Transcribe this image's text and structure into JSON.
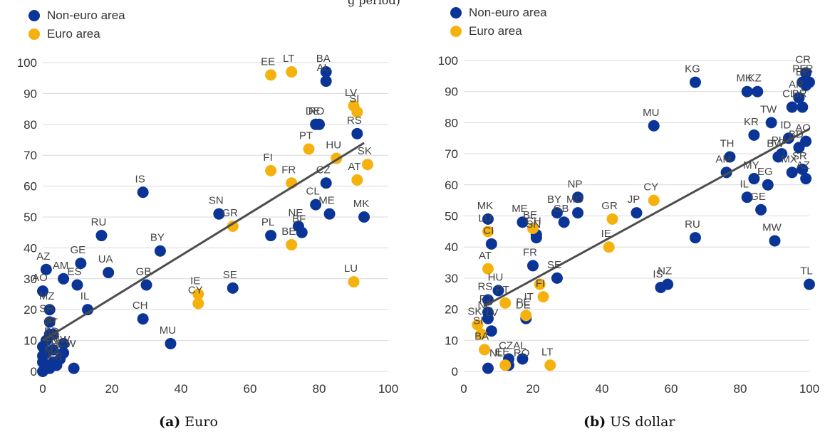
{
  "colors": {
    "non_euro": "#0a3597",
    "euro": "#f5b20f",
    "fit": "#4d4d4d",
    "grid": "#d9d9d9",
    "axis_text": "#333333"
  },
  "top_fragment": "g period)",
  "panels": [
    {
      "caption_letter": "(a)",
      "caption_text": "Euro",
      "legend": [
        {
          "label": "Non-euro area",
          "color": "#0a3597"
        },
        {
          "label": "Euro area",
          "color": "#f5b20f"
        }
      ],
      "chart_data": {
        "type": "scatter",
        "xlim": [
          0,
          100
        ],
        "ylim": [
          0,
          100
        ],
        "xticks": [
          "0",
          "20",
          "40",
          "60",
          "80",
          "100"
        ],
        "yticks": [
          "0",
          "10",
          "20",
          "30",
          "40",
          "50",
          "60",
          "70",
          "80",
          "90",
          "100"
        ],
        "grid": "horizontal",
        "legend_position": "top-left",
        "fit_line": [
          [
            0,
            10
          ],
          [
            93,
            74
          ]
        ],
        "series": [
          {
            "name": "Non-euro area",
            "color": "#0a3597",
            "points": [
              {
                "label": "BA",
                "x": 82,
                "y": 97
              },
              {
                "label": "AL",
                "x": 82,
                "y": 94
              },
              {
                "label": "RO",
                "x": 80,
                "y": 80
              },
              {
                "label": "DE",
                "x": 79,
                "y": 80
              },
              {
                "label": "RS",
                "x": 91,
                "y": 77
              },
              {
                "label": "MK",
                "x": 93,
                "y": 50
              },
              {
                "label": "CZ",
                "x": 82,
                "y": 61
              },
              {
                "label": "CL",
                "x": 79,
                "y": 54
              },
              {
                "label": "ME",
                "x": 83,
                "y": 51
              },
              {
                "label": "NE",
                "x": 74,
                "y": 47
              },
              {
                "label": "BF",
                "x": 75,
                "y": 45
              },
              {
                "label": "PL",
                "x": 66,
                "y": 44
              },
              {
                "label": "SN",
                "x": 51,
                "y": 51
              },
              {
                "label": "SE",
                "x": 55,
                "y": 27
              },
              {
                "label": "IS",
                "x": 29,
                "y": 58
              },
              {
                "label": "RU",
                "x": 17,
                "y": 44
              },
              {
                "label": "BY",
                "x": 34,
                "y": 39
              },
              {
                "label": "UA",
                "x": 19,
                "y": 32
              },
              {
                "label": "GB",
                "x": 30,
                "y": 28
              },
              {
                "label": "CH",
                "x": 29,
                "y": 17
              },
              {
                "label": "MU",
                "x": 37,
                "y": 9
              },
              {
                "label": "GE",
                "x": 11,
                "y": 35
              },
              {
                "label": "AM",
                "x": 6,
                "y": 30
              },
              {
                "label": "AZ",
                "x": 1,
                "y": 33
              },
              {
                "label": "ES",
                "x": 10,
                "y": 28
              },
              {
                "label": "IL",
                "x": 13,
                "y": 20
              },
              {
                "label": "AO",
                "x": 0,
                "y": 26
              },
              {
                "label": "MZ",
                "x": 2,
                "y": 20
              },
              {
                "label": "SR",
                "x": 2,
                "y": 16
              },
              {
                "label": "JP",
                "x": 3,
                "y": 12
              },
              {
                "label": "",
                "x": 6,
                "y": 9
              },
              {
                "label": "MW",
                "x": 6,
                "y": 6
              },
              {
                "label": "",
                "x": 5,
                "y": 4
              },
              {
                "label": "",
                "x": 3,
                "y": 3
              },
              {
                "label": "",
                "x": 2,
                "y": 1
              },
              {
                "label": "",
                "x": 1,
                "y": 2
              },
              {
                "label": "",
                "x": 0,
                "y": 5
              },
              {
                "label": "",
                "x": 0,
                "y": 8
              },
              {
                "label": "",
                "x": 1,
                "y": 10
              },
              {
                "label": "",
                "x": 1,
                "y": 6
              },
              {
                "label": "",
                "x": 2,
                "y": 12
              },
              {
                "label": "",
                "x": 3,
                "y": 7
              },
              {
                "label": "",
                "x": 9,
                "y": 1
              },
              {
                "label": "",
                "x": 4,
                "y": 2
              },
              {
                "label": "",
                "x": 0,
                "y": 3
              },
              {
                "label": "",
                "x": 0,
                "y": 0
              }
            ]
          },
          {
            "name": "Euro area",
            "color": "#f5b20f",
            "points": [
              {
                "label": "EE",
                "x": 66,
                "y": 96
              },
              {
                "label": "LT",
                "x": 72,
                "y": 97
              },
              {
                "label": "LV",
                "x": 90,
                "y": 86
              },
              {
                "label": "SI",
                "x": 91,
                "y": 84
              },
              {
                "label": "PT",
                "x": 77,
                "y": 72
              },
              {
                "label": "FI",
                "x": 66,
                "y": 65
              },
              {
                "label": "HU",
                "x": 85,
                "y": 69
              },
              {
                "label": "SK",
                "x": 94,
                "y": 67
              },
              {
                "label": "FR",
                "x": 72,
                "y": 61
              },
              {
                "label": "AT",
                "x": 91,
                "y": 62
              },
              {
                "label": "GR",
                "x": 55,
                "y": 47
              },
              {
                "label": "BE",
                "x": 72,
                "y": 41
              },
              {
                "label": "IE",
                "x": 45,
                "y": 25
              },
              {
                "label": "CY",
                "x": 45,
                "y": 22
              },
              {
                "label": "LU",
                "x": 90,
                "y": 29
              }
            ]
          }
        ],
        "extra_labels": [
          {
            "text": "PT",
            "x": 0,
            "y": 16
          },
          {
            "text": "BD",
            "x": 0,
            "y": 13
          },
          {
            "text": "FR",
            "x": 0,
            "y": 11
          },
          {
            "text": "TH",
            "x": 0,
            "y": 9
          },
          {
            "text": "MX",
            "x": 0,
            "y": 7
          },
          {
            "text": "KR",
            "x": 1,
            "y": 5
          },
          {
            "text": "CW",
            "x": 4,
            "y": 9
          }
        ]
      }
    },
    {
      "caption_letter": "(b)",
      "caption_text": "US dollar",
      "legend": [
        {
          "label": "Non-euro area",
          "color": "#0a3597"
        },
        {
          "label": "Euro area",
          "color": "#f5b20f"
        }
      ],
      "chart_data": {
        "type": "scatter",
        "xlim": [
          0,
          100
        ],
        "ylim": [
          0,
          100
        ],
        "xticks": [
          "0",
          "20",
          "40",
          "60",
          "80",
          "100"
        ],
        "yticks": [
          "0",
          "10",
          "20",
          "30",
          "40",
          "50",
          "60",
          "70",
          "80",
          "90",
          "100"
        ],
        "grid": "horizontal",
        "legend_position": "top-left",
        "fit_line": [
          [
            6,
            21
          ],
          [
            100,
            78
          ]
        ],
        "series": [
          {
            "name": "Non-euro area",
            "color": "#0a3597",
            "points": [
              {
                "label": "KG",
                "x": 67,
                "y": 93
              },
              {
                "label": "MK",
                "x": 82,
                "y": 90
              },
              {
                "label": "KZ",
                "x": 85,
                "y": 90
              },
              {
                "label": "CR",
                "x": 99,
                "y": 96
              },
              {
                "label": "PE",
                "x": 98,
                "y": 93
              },
              {
                "label": "LR",
                "x": 100,
                "y": 93
              },
              {
                "label": "EC",
                "x": 99,
                "y": 92
              },
              {
                "label": "AR",
                "x": 97,
                "y": 88
              },
              {
                "label": "CL",
                "x": 95,
                "y": 85
              },
              {
                "label": "BR",
                "x": 98,
                "y": 85
              },
              {
                "label": "TW",
                "x": 89,
                "y": 80
              },
              {
                "label": "KR",
                "x": 84,
                "y": 76
              },
              {
                "label": "ID",
                "x": 94,
                "y": 75
              },
              {
                "label": "AO",
                "x": 99,
                "y": 74
              },
              {
                "label": "BD",
                "x": 97,
                "y": 72
              },
              {
                "label": "PH",
                "x": 92,
                "y": 70
              },
              {
                "label": "BW",
                "x": 91,
                "y": 69
              },
              {
                "label": "MX",
                "x": 95,
                "y": 64
              },
              {
                "label": "SR",
                "x": 98,
                "y": 65
              },
              {
                "label": "AZ",
                "x": 99,
                "y": 62
              },
              {
                "label": "TH",
                "x": 77,
                "y": 69
              },
              {
                "label": "AM",
                "x": 76,
                "y": 64
              },
              {
                "label": "MY",
                "x": 84,
                "y": 62
              },
              {
                "label": "EG",
                "x": 88,
                "y": 60
              },
              {
                "label": "IL",
                "x": 82,
                "y": 56
              },
              {
                "label": "GE",
                "x": 86,
                "y": 52
              },
              {
                "label": "MW",
                "x": 90,
                "y": 42
              },
              {
                "label": "TL",
                "x": 100,
                "y": 28
              },
              {
                "label": "MU",
                "x": 55,
                "y": 79
              },
              {
                "label": "RU",
                "x": 67,
                "y": 43
              },
              {
                "label": "NZ",
                "x": 59,
                "y": 28
              },
              {
                "label": "IS",
                "x": 57,
                "y": 27
              },
              {
                "label": "JP",
                "x": 50,
                "y": 51
              },
              {
                "label": "NP",
                "x": 33,
                "y": 56
              },
              {
                "label": "BY",
                "x": 27,
                "y": 51
              },
              {
                "label": "MO",
                "x": 33,
                "y": 51
              },
              {
                "label": "GB",
                "x": 29,
                "y": 48
              },
              {
                "label": "ME",
                "x": 17,
                "y": 48
              },
              {
                "label": "CH",
                "x": 21,
                "y": 44
              },
              {
                "label": "SN",
                "x": 21,
                "y": 43
              },
              {
                "label": "MK",
                "x": 7,
                "y": 49
              },
              {
                "label": "CI",
                "x": 8,
                "y": 41
              },
              {
                "label": "SE",
                "x": 27,
                "y": 30
              },
              {
                "label": "FR",
                "x": 20,
                "y": 34
              },
              {
                "label": "HU",
                "x": 10,
                "y": 26
              },
              {
                "label": "RS",
                "x": 7,
                "y": 23
              },
              {
                "label": "FJ",
                "x": 7,
                "y": 19
              },
              {
                "label": "NE",
                "x": 7,
                "y": 17
              },
              {
                "label": "",
                "x": 8,
                "y": 13
              },
              {
                "label": "DE",
                "x": 18,
                "y": 17
              },
              {
                "label": "AL",
                "x": 17,
                "y": 4
              },
              {
                "label": "CZ",
                "x": 13,
                "y": 4
              },
              {
                "label": "",
                "x": 13,
                "y": 2
              },
              {
                "label": "",
                "x": 7,
                "y": 1
              }
            ]
          },
          {
            "name": "Euro area",
            "color": "#f5b20f",
            "points": [
              {
                "label": "CY",
                "x": 55,
                "y": 55
              },
              {
                "label": "GR",
                "x": 43,
                "y": 49
              },
              {
                "label": "IE",
                "x": 42,
                "y": 40
              },
              {
                "label": "BE",
                "x": 20,
                "y": 46
              },
              {
                "label": "LU",
                "x": 7,
                "y": 45
              },
              {
                "label": "AT",
                "x": 7,
                "y": 33
              },
              {
                "label": "FI",
                "x": 23,
                "y": 24
              },
              {
                "label": "",
                "x": 22,
                "y": 28
              },
              {
                "label": "PT",
                "x": 12,
                "y": 22
              },
              {
                "label": "PE",
                "x": 18,
                "y": 18
              },
              {
                "label": "SK",
                "x": 4,
                "y": 15
              },
              {
                "label": "SI",
                "x": 5,
                "y": 12
              },
              {
                "label": "BA",
                "x": 6,
                "y": 7
              },
              {
                "label": "EE",
                "x": 12,
                "y": 2
              },
              {
                "label": "LT",
                "x": 25,
                "y": 2
              }
            ]
          }
        ],
        "extra_labels": [
          {
            "text": "LV",
            "x": 6,
            "y": 19
          },
          {
            "text": "NL",
            "x": 7,
            "y": 6
          },
          {
            "text": "RO",
            "x": 14,
            "y": 6
          },
          {
            "text": "IT",
            "x": 17,
            "y": 24
          }
        ]
      }
    }
  ]
}
